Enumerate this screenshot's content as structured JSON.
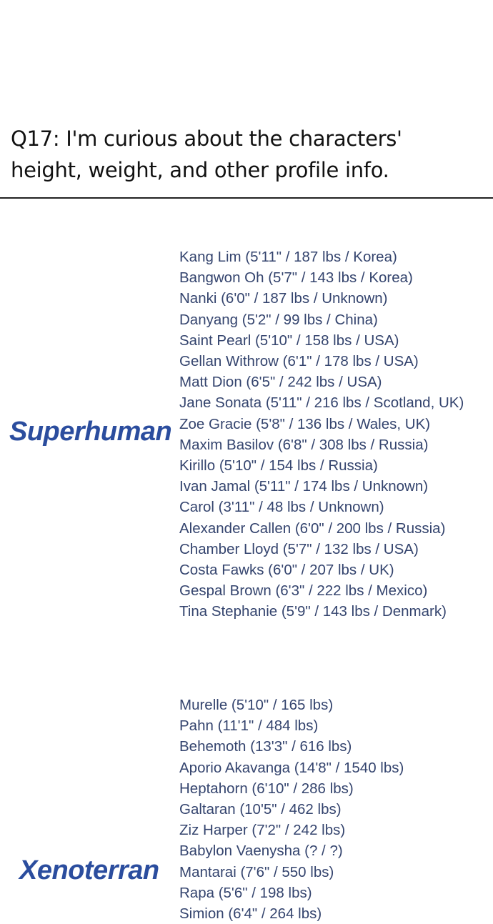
{
  "question": {
    "lines": [
      "Q17: I'm curious about the characters'",
      "height, weight, and other profile info."
    ]
  },
  "sections": [
    {
      "label": "Superhuman",
      "items": [
        "Kang Lim (5'11\" / 187 lbs / Korea)",
        "Bangwon Oh (5'7\" / 143 lbs / Korea)",
        "Nanki (6'0\" / 187 lbs / Unknown)",
        "Danyang (5'2\" / 99 lbs / China)",
        "Saint Pearl (5'10\" / 158 lbs / USA)",
        "Gellan Withrow (6'1\" / 178 lbs / USA)",
        "Matt Dion (6'5\" / 242 lbs / USA)",
        "Jane Sonata (5'11\" / 216 lbs / Scotland, UK)",
        "Zoe Gracie (5'8\" / 136 lbs / Wales, UK)",
        "Maxim Basilov (6'8\" / 308 lbs / Russia)",
        "Kirillo (5'10\" / 154 lbs / Russia)",
        "Ivan Jamal (5'11\" / 174 lbs / Unknown)",
        "Carol (3'11\" / 48 lbs / Unknown)",
        "Alexander Callen (6'0\" / 200 lbs / Russia)",
        "Chamber Lloyd (5'7\" / 132 lbs / USA)",
        "Costa Fawks (6'0\" / 207 lbs / UK)",
        "Gespal Brown (6'3\" / 222 lbs / Mexico)",
        "Tina Stephanie (5'9\" / 143 lbs / Denmark)"
      ]
    },
    {
      "label": "Xenoterran",
      "items": [
        "Murelle (5'10\" / 165 lbs)",
        "Pahn (11'1\" / 484 lbs)",
        "Behemoth (13'3\" / 616 lbs)",
        "Aporio Akavanga (14'8\" / 1540 lbs)",
        "Heptahorn (6'10\" / 286 lbs)",
        "Galtaran (10'5\" / 462 lbs)",
        "Ziz Harper (7'2\" / 242 lbs)",
        "Babylon Vaenysha (? / ?)",
        "Mantarai (7'6\" / 550 lbs)",
        "Rapa (5'6\" / 198 lbs)",
        "Simion (6'4\" / 264 lbs)"
      ]
    }
  ],
  "colors": {
    "heading": "#2b4d9e",
    "list_text": "#34446e",
    "title": "#111111"
  }
}
